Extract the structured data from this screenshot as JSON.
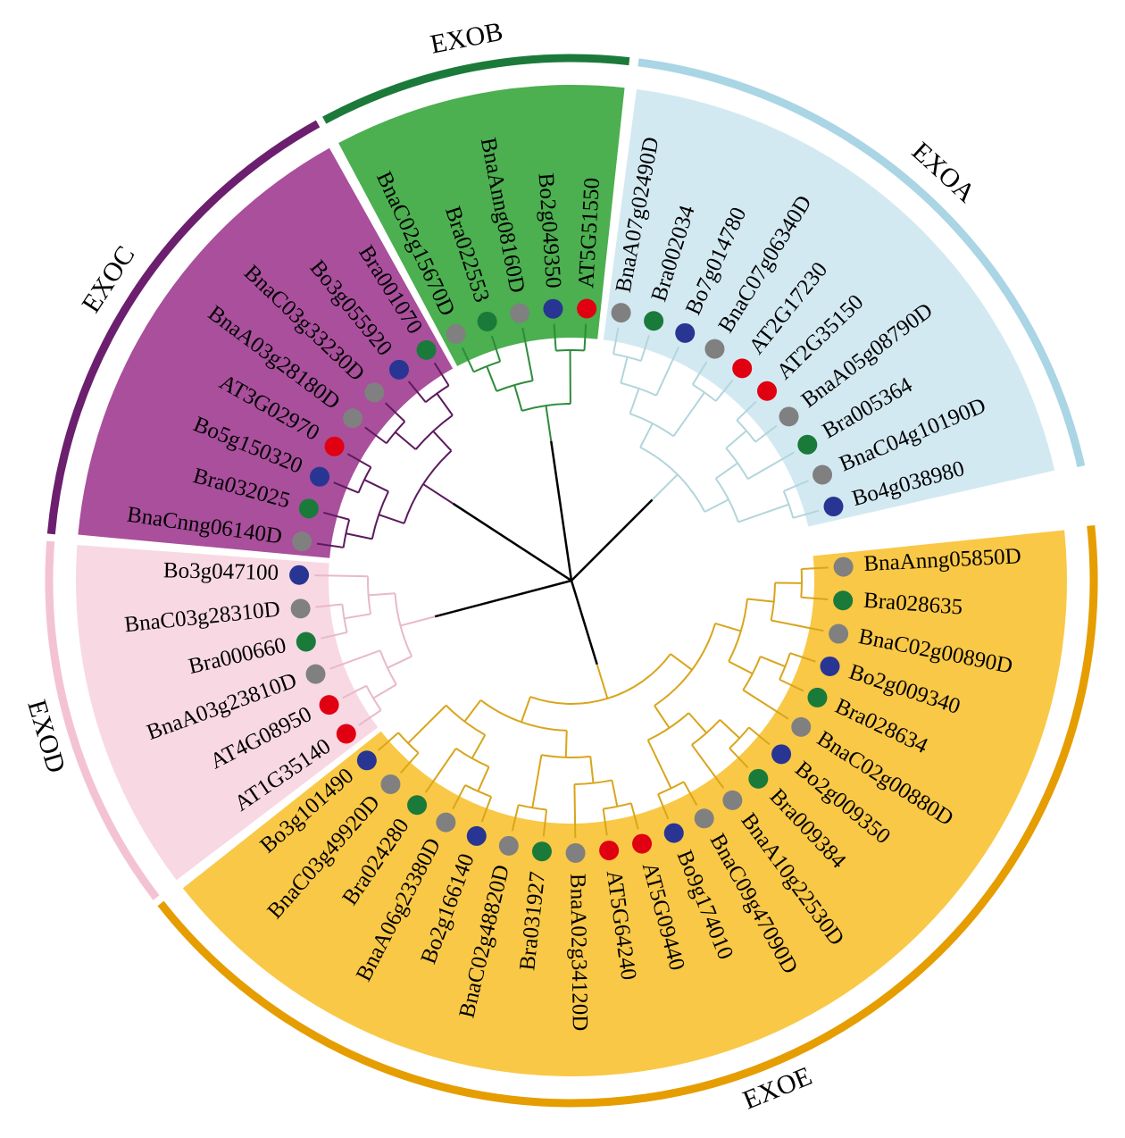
{
  "groups": [
    {
      "name": "EXOA",
      "color": "#d3e9f2",
      "arc_color": "#a9d5e5",
      "branch_color": "#b3d5dc",
      "leaves": [
        {
          "label": "BnaA07g02490D",
          "dot": "#808080"
        },
        {
          "label": "Bra002034",
          "dot": "#1a7a3a"
        },
        {
          "label": "Bo7g014780",
          "dot": "#283593"
        },
        {
          "label": "BnaC07g06340D",
          "dot": "#808080"
        },
        {
          "label": "AT2G17230",
          "dot": "#e00012"
        },
        {
          "label": "AT2G35150",
          "dot": "#e00012"
        },
        {
          "label": "BnaA05g08790D",
          "dot": "#808080"
        },
        {
          "label": "Bra005364",
          "dot": "#1a7a3a"
        },
        {
          "label": "BnaC04g10190D",
          "dot": "#808080"
        },
        {
          "label": "Bo4g038980",
          "dot": "#283593"
        }
      ]
    },
    {
      "name": "EXOE",
      "color": "#f9c846",
      "arc_color": "#e59d00",
      "branch_color": "#d9a51c",
      "leaves": [
        {
          "label": "BnaAnng05850D",
          "dot": "#808080"
        },
        {
          "label": "Bra028635",
          "dot": "#1a7a3a"
        },
        {
          "label": "BnaC02g00890D",
          "dot": "#808080"
        },
        {
          "label": "Bo2g009340",
          "dot": "#283593"
        },
        {
          "label": "Bra028634",
          "dot": "#1a7a3a"
        },
        {
          "label": "BnaC02g00880D",
          "dot": "#808080"
        },
        {
          "label": "Bo2g009350",
          "dot": "#283593"
        },
        {
          "label": "Bra009384",
          "dot": "#1a7a3a"
        },
        {
          "label": "BnaA10g22530D",
          "dot": "#808080"
        },
        {
          "label": "BnaC09g47090D",
          "dot": "#808080"
        },
        {
          "label": "Bo9g174010",
          "dot": "#283593"
        },
        {
          "label": "AT5G09440",
          "dot": "#e00012"
        },
        {
          "label": "AT5G64240",
          "dot": "#e00012"
        },
        {
          "label": "BnaA02g34120D",
          "dot": "#808080"
        },
        {
          "label": "Bra031927",
          "dot": "#1a7a3a"
        },
        {
          "label": "BnaC02g48820D",
          "dot": "#808080"
        },
        {
          "label": "Bo2g166140",
          "dot": "#283593"
        },
        {
          "label": "BnaA06g23380D",
          "dot": "#808080"
        },
        {
          "label": "Bra024280",
          "dot": "#1a7a3a"
        },
        {
          "label": "BnaC03g49920D",
          "dot": "#808080"
        },
        {
          "label": "Bo3g101490",
          "dot": "#283593"
        }
      ]
    },
    {
      "name": "EXOD",
      "color": "#f8d9e3",
      "arc_color": "#f4c3d3",
      "branch_color": "#e8b9c8",
      "leaves": [
        {
          "label": "AT1G35140",
          "dot": "#e00012"
        },
        {
          "label": "AT4G08950",
          "dot": "#e00012"
        },
        {
          "label": "BnaA03g23810D",
          "dot": "#808080"
        },
        {
          "label": "Bra000660",
          "dot": "#1a7a3a"
        },
        {
          "label": "BnaC03g28310D",
          "dot": "#808080"
        },
        {
          "label": "Bo3g047100",
          "dot": "#283593"
        }
      ]
    },
    {
      "name": "EXOC",
      "color": "#a94f9c",
      "arc_color": "#6b1f6e",
      "branch_color": "#5c1a5e",
      "leaves": [
        {
          "label": "BnaCnng06140D",
          "dot": "#808080"
        },
        {
          "label": "Bra032025",
          "dot": "#1a7a3a"
        },
        {
          "label": "Bo5g150320",
          "dot": "#283593"
        },
        {
          "label": "AT3G02970",
          "dot": "#e00012"
        },
        {
          "label": "BnaA03g28180D",
          "dot": "#808080"
        },
        {
          "label": "BnaC03g33230D",
          "dot": "#808080"
        },
        {
          "label": "Bo3g055920",
          "dot": "#283593"
        },
        {
          "label": "Bra001070",
          "dot": "#1a7a3a"
        }
      ]
    },
    {
      "name": "EXOB",
      "color": "#4caf50",
      "arc_color": "#1b7a3a",
      "branch_color": "#2e8b3a",
      "leaves": [
        {
          "label": "BnaC02g15670D",
          "dot": "#808080"
        },
        {
          "label": "Bra022553",
          "dot": "#1a7a3a"
        },
        {
          "label": "BnaAnng08160D",
          "dot": "#808080"
        },
        {
          "label": "Bo2g049350",
          "dot": "#283593"
        },
        {
          "label": "AT5G51550",
          "dot": "#e00012"
        }
      ]
    }
  ]
}
